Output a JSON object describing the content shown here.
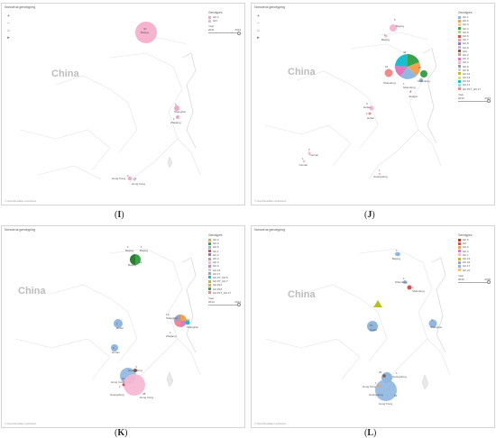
{
  "panels": {
    "I": {
      "title": "Norovirus genotyping",
      "caption_open": "(",
      "caption_letter": "I",
      "caption_close": ")",
      "country": "China",
      "credit": "© OpenStreetMap contributors",
      "legend_title": "Genotypes",
      "legend": [
        {
          "name": "GII.4",
          "color": "#f4a6c6"
        },
        {
          "name": "GIV",
          "color": "#d3c4cf"
        }
      ],
      "year_label": "Year",
      "year_from": "2011",
      "year_to": "2012",
      "cities": [
        {
          "name": "Beijing",
          "count": "30"
        },
        {
          "name": "Shanghai",
          "count": "5"
        },
        {
          "name": "Zhejiang",
          "count": "1"
        },
        {
          "name": "Hong Kong",
          "count": "2"
        },
        {
          "name": "Hong Kong",
          "count": "1"
        }
      ]
    },
    "J": {
      "title": "Norovirus genotyping",
      "caption_open": "(",
      "caption_letter": "J",
      "caption_close": ")",
      "country": "China",
      "credit": "© OpenStreetMap contributors",
      "legend_title": "Genotypes",
      "legend": [
        {
          "name": "GII.1",
          "color": "#8fb7e0"
        },
        {
          "name": "GII.2",
          "color": "#f5a04a"
        },
        {
          "name": "GII.3",
          "color": "#f7c88a"
        },
        {
          "name": "GII.4",
          "color": "#3aa34a"
        },
        {
          "name": "GII.5",
          "color": "#a8d58a"
        },
        {
          "name": "GII.6",
          "color": "#e34a4a"
        },
        {
          "name": "GII.7",
          "color": "#f59a9a"
        },
        {
          "name": "GII.8",
          "color": "#9b6fc2"
        },
        {
          "name": "GII.9",
          "color": "#c8b0de"
        },
        {
          "name": "GIII",
          "color": "#8d5a4a"
        },
        {
          "name": "GII.2",
          "color": "#c9a093"
        },
        {
          "name": "GII.3",
          "color": "#e377c2"
        },
        {
          "name": "GII.4",
          "color": "#f7b6d2"
        },
        {
          "name": "GII.6",
          "color": "#9a9a9a"
        },
        {
          "name": "GII.8",
          "color": "#cfcfcf"
        },
        {
          "name": "GII.12",
          "color": "#bcbd22"
        },
        {
          "name": "GII.13",
          "color": "#dbdb8d"
        },
        {
          "name": "GII.16",
          "color": "#17becf"
        },
        {
          "name": "GII.17",
          "color": "#9edae5"
        },
        {
          "name": "GII.P17_GII.17",
          "color": "#f28a8a"
        }
      ],
      "year_label": "Year",
      "year_from": "2013",
      "year_to": "2013",
      "cities": [
        {
          "name": "Beijing",
          "count": "5"
        },
        {
          "name": "Beijing",
          "count": "1"
        },
        {
          "name": "Shandong",
          "count": "44"
        },
        {
          "name": "Shandong",
          "count": "15"
        },
        {
          "name": "Shandong",
          "count": "17"
        },
        {
          "name": "Shandong",
          "count": "1"
        },
        {
          "name": "Jiangsu",
          "count": "1"
        },
        {
          "name": "Hubei",
          "count": "3"
        },
        {
          "name": "Hubei",
          "count": "1"
        },
        {
          "name": "Yunnan",
          "count": "2"
        },
        {
          "name": "Yunnan",
          "count": "1"
        },
        {
          "name": "Guangdong",
          "count": "1"
        }
      ]
    },
    "K": {
      "title": "Norovirus genotyping",
      "caption_open": "(",
      "caption_letter": "K",
      "caption_close": ")",
      "country": "China",
      "credit": "© OpenStreetMap contributors",
      "legend_title": "Genotypes",
      "legend": [
        {
          "name": "GII.2",
          "color": "#f5a04a"
        },
        {
          "name": "GII.3",
          "color": "#3aa34a"
        },
        {
          "name": "GII.6",
          "color": "#8fb7e0"
        },
        {
          "name": "GII.1",
          "color": "#e34a4a"
        },
        {
          "name": "GII.2",
          "color": "#9b6fc2"
        },
        {
          "name": "GII.3",
          "color": "#c9a093"
        },
        {
          "name": "GII.4",
          "color": "#f7b6d2"
        },
        {
          "name": "GII.6",
          "color": "#e377c2"
        },
        {
          "name": "GII.13",
          "color": "#cfcfcf"
        },
        {
          "name": "GII.17",
          "color": "#9aa0c8"
        },
        {
          "name": "GII.P7_GII.6",
          "color": "#17becf"
        },
        {
          "name": "GII.P7_GII.7",
          "color": "#bcbd22"
        },
        {
          "name": "GII.P12",
          "color": "#f5a04a"
        },
        {
          "name": "GII.P16",
          "color": "#3aa34a"
        },
        {
          "name": "GII.P17_GII.17",
          "color": "#f28a8a"
        }
      ],
      "year_label": "Year",
      "year_from": "2014",
      "year_to": "2014",
      "cities": [
        {
          "name": "Beijing",
          "count": "1"
        },
        {
          "name": "Beijing",
          "count": "1"
        },
        {
          "name": "Beijing",
          "count": "12"
        },
        {
          "name": "Shanghai",
          "count": "14"
        },
        {
          "name": "Shanghai",
          "count": "19"
        },
        {
          "name": "Zhejiang",
          "count": "1"
        },
        {
          "name": "Hubei",
          "count": "1"
        },
        {
          "name": "Hunan",
          "count": "1"
        },
        {
          "name": "Guangdong",
          "count": "4"
        },
        {
          "name": "Guangdong",
          "count": "10"
        },
        {
          "name": "Hong Kong",
          "count": "38"
        },
        {
          "name": "Hong Kong",
          "count": "1"
        }
      ]
    },
    "L": {
      "title": "Norovirus genotyping",
      "caption_open": "(",
      "caption_letter": "L",
      "caption_close": ")",
      "country": "China",
      "credit": "© OpenStreetMap contributors",
      "legend_title": "Genotypes",
      "legend": [
        {
          "name": "GII.6",
          "color": "#c0392b"
        },
        {
          "name": "GII",
          "color": "#e34a4a"
        },
        {
          "name": "GII.3",
          "color": "#f5a04a"
        },
        {
          "name": "GII.4",
          "color": "#e377c2"
        },
        {
          "name": "GII.7",
          "color": "#f7b6d2"
        },
        {
          "name": "GII.13",
          "color": "#bcbd22"
        },
        {
          "name": "GII.16",
          "color": "#9aa0c8"
        },
        {
          "name": "GII.17",
          "color": "#8fb7e0"
        },
        {
          "name": "GII.21",
          "color": "#f5c26b"
        }
      ],
      "year_label": "Year",
      "year_from": "2015",
      "year_to": "2015",
      "cities": [
        {
          "name": "Beijing",
          "count": "1"
        },
        {
          "name": "Shandong",
          "count": "1"
        },
        {
          "name": "Shandong",
          "count": "1"
        },
        {
          "name": "Shanghai",
          "count": "4"
        },
        {
          "name": "Hubei",
          "count": "15"
        },
        {
          "name": "Guangdong",
          "count": "1"
        },
        {
          "name": "Guangdong",
          "count": "25"
        },
        {
          "name": "Hong Kong",
          "count": "83"
        },
        {
          "name": "Hong Kong",
          "count": "1"
        }
      ]
    }
  }
}
